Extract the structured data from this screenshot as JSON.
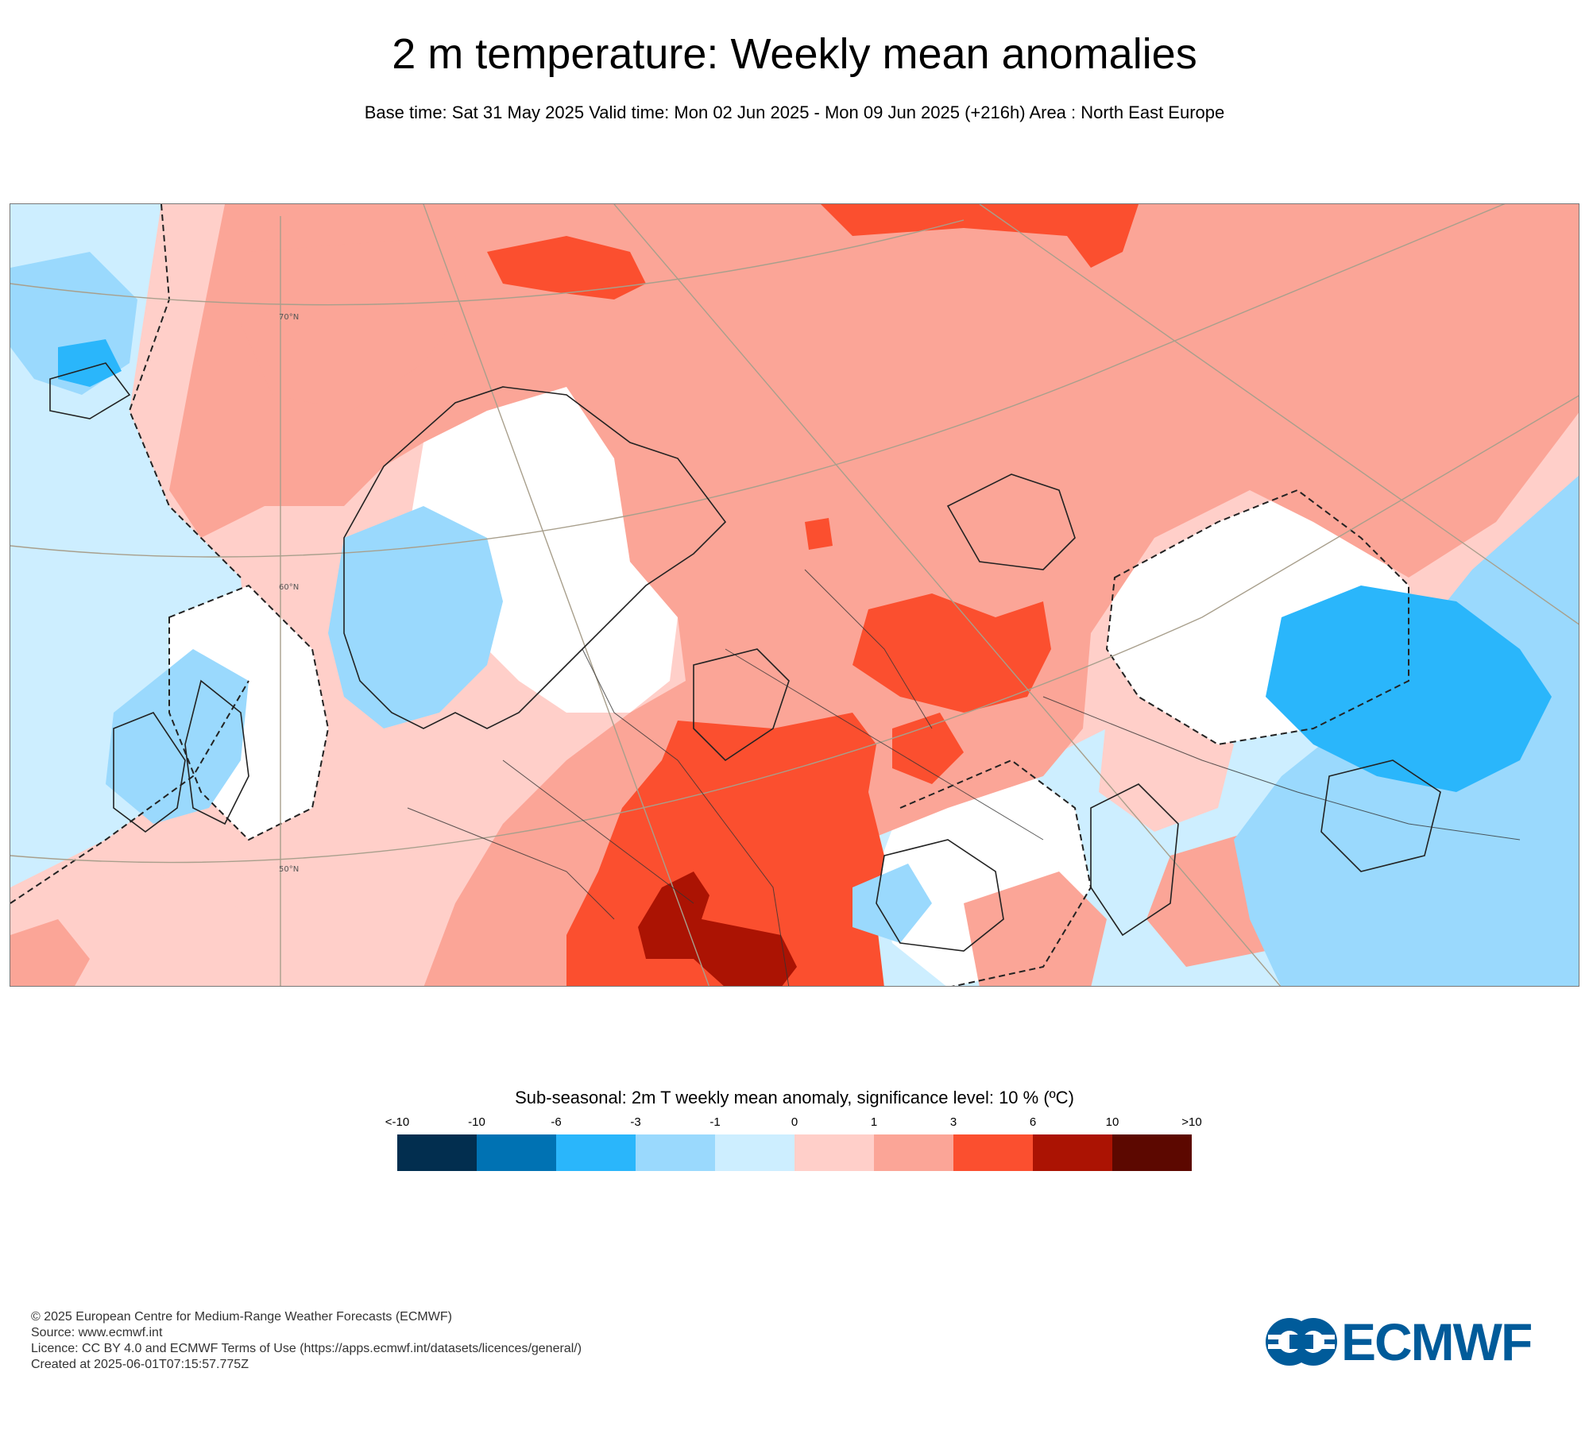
{
  "title": "2 m temperature: Weekly mean anomalies",
  "subtitle": "Base time: Sat 31 May 2025 Valid time: Mon 02 Jun 2025 - Mon 09 Jun 2025 (+216h) Area : North East Europe",
  "map": {
    "area": "North East Europe",
    "parameter": "2m temperature weekly mean anomaly",
    "lat_labels": [
      "70°N",
      "60°N",
      "50°N"
    ],
    "regions": [
      {
        "name": "northern-russia-warm",
        "anomaly_class": "1 to 3"
      },
      {
        "name": "barents-coast-warm",
        "anomaly_class": "3 to 6"
      },
      {
        "name": "arctic-ocean-warm",
        "anomaly_class": "3 to 6"
      },
      {
        "name": "central-russia-warm",
        "anomaly_class": "3 to 6"
      },
      {
        "name": "ukraine-romania-warm",
        "anomaly_class": "3 to 6"
      },
      {
        "name": "carpathian-hot",
        "anomaly_class": "6 to 10"
      },
      {
        "name": "scandinavia-cool",
        "anomaly_class": "-3 to -1"
      },
      {
        "name": "british-isles-cool",
        "anomaly_class": "-3 to -1"
      },
      {
        "name": "kazakhstan-cold",
        "anomaly_class": "-6 to -3"
      },
      {
        "name": "kazakhstan-cool",
        "anomaly_class": "-3 to -1"
      },
      {
        "name": "north-atlantic-cool",
        "anomaly_class": "-1 to 0"
      }
    ]
  },
  "legend": {
    "title": "Sub-seasonal: 2m T weekly mean anomaly, significance level: 10 % (ºC)",
    "ticks": [
      "<-10",
      "-10",
      "-6",
      "-3",
      "-1",
      "0",
      "1",
      "3",
      "6",
      "10",
      ">10"
    ],
    "colors": [
      "#022e4f",
      "#0072b3",
      "#2ab6fb",
      "#9ad9fd",
      "#cdeeff",
      "#ffcfc9",
      "#fba597",
      "#fb4f2f",
      "#ab1303",
      "#5c0800"
    ]
  },
  "footer": {
    "copyright": "© 2025 European Centre for Medium-Range Weather Forecasts (ECMWF)",
    "source": "Source: www.ecmwf.int",
    "licence": "Licence: CC BY 4.0 and ECMWF Terms of Use (https://apps.ecmwf.int/datasets/licences/general/)",
    "created": "Created at 2025-06-01T07:15:57.775Z"
  },
  "logo": {
    "text": "ECMWF",
    "color": "#005b9a"
  }
}
